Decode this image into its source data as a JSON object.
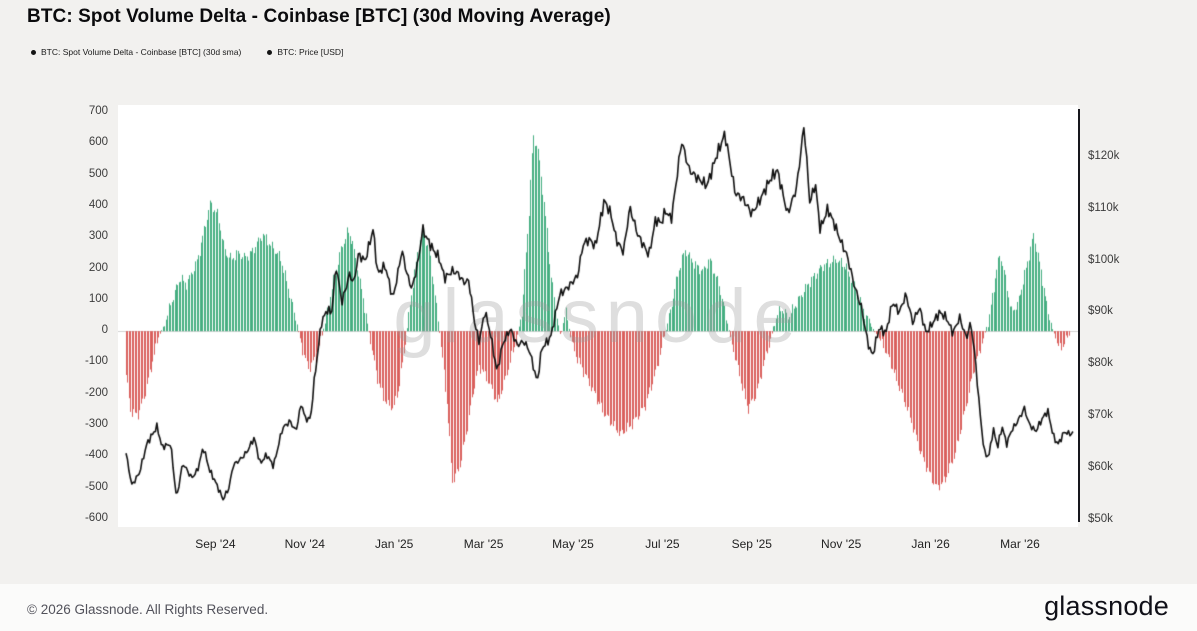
{
  "header": {
    "title": "BTC: Spot Volume Delta - Coinbase [BTC] (30d Moving Average)"
  },
  "legend": {
    "items": [
      {
        "label": "BTC: Spot Volume Delta - Coinbase [BTC] (30d sma)",
        "marker": "dot-icon",
        "color": "#141414"
      },
      {
        "label": "BTC: Price [USD]",
        "marker": "dot-icon",
        "color": "#141414"
      }
    ]
  },
  "watermark": "glassnode",
  "footer": {
    "copyright": "© 2026 Glassnode. All Rights Reserved.",
    "logo": "glassnode"
  },
  "colors": {
    "positive_bar": "#45ae81",
    "negative_bar": "#da5f5c",
    "price_line": "#111111",
    "zero_line": "#d2d2d2",
    "axis_spine": "#16161c",
    "plot_background": "#ffffff"
  },
  "chart_data": {
    "type": "combo",
    "title": "BTC: Spot Volume Delta - Coinbase [BTC] (30d Moving Average)",
    "x_unit": "months since 2024-07-01",
    "x_range": [
      0,
      21.2
    ],
    "grid": "zero-line-only",
    "legend_position": "top-left",
    "x_axis": {
      "ticks": [
        {
          "label": "Sep '24",
          "pos": 2
        },
        {
          "label": "Nov '24",
          "pos": 4
        },
        {
          "label": "Jan '25",
          "pos": 6
        },
        {
          "label": "Mar '25",
          "pos": 8
        },
        {
          "label": "May '25",
          "pos": 10
        },
        {
          "label": "Jul '25",
          "pos": 12
        },
        {
          "label": "Sep '25",
          "pos": 14
        },
        {
          "label": "Nov '25",
          "pos": 16
        },
        {
          "label": "Jan '26",
          "pos": 18
        },
        {
          "label": "Mar '26",
          "pos": 20
        }
      ]
    },
    "left_axis": {
      "title": "Spot Volume Delta (30d sma)",
      "ticks": [
        700,
        600,
        500,
        400,
        300,
        200,
        100,
        0,
        -100,
        -200,
        -300,
        -400,
        -500,
        -600
      ],
      "range": [
        -600,
        700
      ]
    },
    "right_axis": {
      "title": "BTC Price [USD]",
      "ticks": [
        {
          "label": "$120k",
          "value": 120
        },
        {
          "label": "$110k",
          "value": 110
        },
        {
          "label": "$100k",
          "value": 100
        },
        {
          "label": "$90k",
          "value": 90
        },
        {
          "label": "$80k",
          "value": 80
        },
        {
          "label": "$70k",
          "value": 70
        },
        {
          "label": "$60k",
          "value": 60
        },
        {
          "label": "$50k",
          "value": 50
        }
      ],
      "range_k": [
        50,
        120
      ]
    },
    "series": [
      {
        "name": "BTC: Spot Volume Delta - Coinbase [BTC] (30d sma)",
        "type": "bar",
        "axis": "left",
        "keypoints": [
          [
            0,
            -140
          ],
          [
            0.1,
            -255
          ],
          [
            0.25,
            -270
          ],
          [
            0.4,
            -210
          ],
          [
            0.55,
            -120
          ],
          [
            0.7,
            -30
          ],
          [
            0.85,
            25
          ],
          [
            1.0,
            90
          ],
          [
            1.2,
            170
          ],
          [
            1.35,
            150
          ],
          [
            1.6,
            230
          ],
          [
            1.88,
            410
          ],
          [
            2.05,
            370
          ],
          [
            2.2,
            255
          ],
          [
            2.35,
            230
          ],
          [
            2.5,
            250
          ],
          [
            2.65,
            235
          ],
          [
            2.8,
            250
          ],
          [
            3.05,
            310
          ],
          [
            3.2,
            280
          ],
          [
            3.45,
            235
          ],
          [
            3.6,
            150
          ],
          [
            3.75,
            60
          ],
          [
            3.88,
            -20
          ],
          [
            4.0,
            -90
          ],
          [
            4.1,
            -120
          ],
          [
            4.25,
            -80
          ],
          [
            4.38,
            -10
          ],
          [
            4.5,
            60
          ],
          [
            4.65,
            170
          ],
          [
            4.8,
            260
          ],
          [
            4.95,
            320
          ],
          [
            5.05,
            290
          ],
          [
            5.2,
            180
          ],
          [
            5.35,
            60
          ],
          [
            5.5,
            -60
          ],
          [
            5.62,
            -150
          ],
          [
            5.75,
            -210
          ],
          [
            5.9,
            -245
          ],
          [
            6.0,
            -235
          ],
          [
            6.1,
            -180
          ],
          [
            6.2,
            -90
          ],
          [
            6.3,
            30
          ],
          [
            6.42,
            160
          ],
          [
            6.55,
            280
          ],
          [
            6.65,
            320
          ],
          [
            6.8,
            240
          ],
          [
            6.92,
            100
          ],
          [
            7.05,
            -60
          ],
          [
            7.18,
            -240
          ],
          [
            7.3,
            -480
          ],
          [
            7.45,
            -440
          ],
          [
            7.6,
            -330
          ],
          [
            7.75,
            -200
          ],
          [
            7.9,
            -110
          ],
          [
            8.1,
            -160
          ],
          [
            8.3,
            -230
          ],
          [
            8.45,
            -170
          ],
          [
            8.6,
            -90
          ],
          [
            8.72,
            -30
          ],
          [
            8.85,
            60
          ],
          [
            9.0,
            350
          ],
          [
            9.1,
            620
          ],
          [
            9.2,
            590
          ],
          [
            9.35,
            400
          ],
          [
            9.5,
            180
          ],
          [
            9.62,
            60
          ],
          [
            9.72,
            -20
          ],
          [
            9.82,
            70
          ],
          [
            9.95,
            -30
          ],
          [
            10.1,
            -90
          ],
          [
            10.4,
            -180
          ],
          [
            10.7,
            -265
          ],
          [
            11.05,
            -330
          ],
          [
            11.3,
            -300
          ],
          [
            11.6,
            -240
          ],
          [
            11.85,
            -130
          ],
          [
            12.0,
            -40
          ],
          [
            12.15,
            50
          ],
          [
            12.35,
            190
          ],
          [
            12.5,
            260
          ],
          [
            12.7,
            215
          ],
          [
            12.9,
            190
          ],
          [
            13.05,
            230
          ],
          [
            13.25,
            150
          ],
          [
            13.4,
            60
          ],
          [
            13.55,
            -40
          ],
          [
            13.75,
            -160
          ],
          [
            13.9,
            -250
          ],
          [
            14.1,
            -200
          ],
          [
            14.25,
            -110
          ],
          [
            14.4,
            -30
          ],
          [
            14.5,
            30
          ],
          [
            14.65,
            75
          ],
          [
            14.8,
            45
          ],
          [
            15.0,
            90
          ],
          [
            15.25,
            150
          ],
          [
            15.55,
            205
          ],
          [
            15.88,
            230
          ],
          [
            16.1,
            205
          ],
          [
            16.3,
            140
          ],
          [
            16.5,
            60
          ],
          [
            16.7,
            10
          ],
          [
            16.95,
            -50
          ],
          [
            17.2,
            -140
          ],
          [
            17.5,
            -260
          ],
          [
            17.75,
            -380
          ],
          [
            17.95,
            -450
          ],
          [
            18.12,
            -500
          ],
          [
            18.3,
            -480
          ],
          [
            18.55,
            -390
          ],
          [
            18.75,
            -260
          ],
          [
            18.95,
            -130
          ],
          [
            19.12,
            -50
          ],
          [
            19.3,
            40
          ],
          [
            19.45,
            180
          ],
          [
            19.55,
            250
          ],
          [
            19.68,
            160
          ],
          [
            19.8,
            60
          ],
          [
            19.95,
            90
          ],
          [
            20.1,
            180
          ],
          [
            20.3,
            310
          ],
          [
            20.45,
            200
          ],
          [
            20.58,
            90
          ],
          [
            20.7,
            20
          ],
          [
            20.8,
            -30
          ],
          [
            20.9,
            -60
          ],
          [
            21.0,
            -30
          ],
          [
            21.1,
            -10
          ]
        ]
      },
      {
        "name": "BTC: Price [USD]",
        "type": "line",
        "axis": "right",
        "unit": "thousand USD",
        "keypoints": [
          [
            0,
            62.8
          ],
          [
            0.13,
            56.6
          ],
          [
            0.3,
            59
          ],
          [
            0.47,
            64.7
          ],
          [
            0.7,
            68
          ],
          [
            0.8,
            64
          ],
          [
            1.0,
            64.6
          ],
          [
            1.13,
            54
          ],
          [
            1.27,
            60.9
          ],
          [
            1.47,
            58
          ],
          [
            1.6,
            59.5
          ],
          [
            1.73,
            64
          ],
          [
            1.87,
            59.5
          ],
          [
            2.0,
            57.3
          ],
          [
            2.17,
            53.9
          ],
          [
            2.3,
            56
          ],
          [
            2.4,
            60.5
          ],
          [
            2.57,
            61.7
          ],
          [
            2.7,
            63
          ],
          [
            2.87,
            65.8
          ],
          [
            3.0,
            60.8
          ],
          [
            3.15,
            62.5
          ],
          [
            3.3,
            60.3
          ],
          [
            3.5,
            67.6
          ],
          [
            3.67,
            69
          ],
          [
            3.8,
            67
          ],
          [
            3.93,
            72.7
          ],
          [
            4.0,
            69.5
          ],
          [
            4.13,
            69.4
          ],
          [
            4.2,
            75.9
          ],
          [
            4.37,
            88
          ],
          [
            4.5,
            90.5
          ],
          [
            4.6,
            89.9
          ],
          [
            4.7,
            99
          ],
          [
            4.83,
            91.9
          ],
          [
            5.0,
            97.3
          ],
          [
            5.1,
            95.8
          ],
          [
            5.2,
            101.2
          ],
          [
            5.35,
            99.9
          ],
          [
            5.53,
            106.1
          ],
          [
            5.63,
            97.5
          ],
          [
            5.8,
            99
          ],
          [
            5.97,
            92.6
          ],
          [
            6.1,
            98.3
          ],
          [
            6.17,
            102.1
          ],
          [
            6.3,
            96.9
          ],
          [
            6.4,
            94.5
          ],
          [
            6.55,
            100.5
          ],
          [
            6.63,
            106.1
          ],
          [
            6.75,
            104
          ],
          [
            6.87,
            102.1
          ],
          [
            7.0,
            100.6
          ],
          [
            7.13,
            96.6
          ],
          [
            7.3,
            98
          ],
          [
            7.43,
            97.5
          ],
          [
            7.55,
            95.8
          ],
          [
            7.67,
            96.1
          ],
          [
            7.8,
            88
          ],
          [
            7.9,
            84.3
          ],
          [
            8.03,
            90.2
          ],
          [
            8.15,
            86
          ],
          [
            8.3,
            78.5
          ],
          [
            8.43,
            84
          ],
          [
            8.6,
            86.8
          ],
          [
            8.75,
            83.7
          ],
          [
            8.9,
            84.4
          ],
          [
            9.03,
            82.5
          ],
          [
            9.2,
            76.5
          ],
          [
            9.3,
            83
          ],
          [
            9.5,
            85.2
          ],
          [
            9.7,
            93.4
          ],
          [
            9.9,
            95
          ],
          [
            10.1,
            97
          ],
          [
            10.23,
            103.2
          ],
          [
            10.37,
            104.1
          ],
          [
            10.5,
            102.7
          ],
          [
            10.7,
            111.7
          ],
          [
            10.85,
            108.9
          ],
          [
            10.97,
            104
          ],
          [
            11.13,
            101.6
          ],
          [
            11.27,
            110.3
          ],
          [
            11.45,
            105
          ],
          [
            11.7,
            101
          ],
          [
            11.85,
            108
          ],
          [
            11.97,
            107.2
          ],
          [
            12.07,
            109.6
          ],
          [
            12.2,
            108
          ],
          [
            12.43,
            123.1
          ],
          [
            12.6,
            117.5
          ],
          [
            12.8,
            115.8
          ],
          [
            13.0,
            114.5
          ],
          [
            13.2,
            120
          ],
          [
            13.4,
            124.5
          ],
          [
            13.63,
            113
          ],
          [
            13.8,
            112
          ],
          [
            14.0,
            109
          ],
          [
            14.2,
            112
          ],
          [
            14.4,
            115.5
          ],
          [
            14.57,
            117.5
          ],
          [
            14.8,
            109
          ],
          [
            15.0,
            114
          ],
          [
            15.17,
            126.2
          ],
          [
            15.3,
            111
          ],
          [
            15.42,
            115
          ],
          [
            15.53,
            106
          ],
          [
            15.7,
            110
          ],
          [
            15.85,
            107
          ],
          [
            16.0,
            103.5
          ],
          [
            16.13,
            101
          ],
          [
            16.3,
            95
          ],
          [
            16.45,
            91
          ],
          [
            16.6,
            84
          ],
          [
            16.7,
            81.6
          ],
          [
            16.85,
            87
          ],
          [
            17.0,
            86
          ],
          [
            17.15,
            92
          ],
          [
            17.3,
            90
          ],
          [
            17.45,
            93.5
          ],
          [
            17.6,
            88
          ],
          [
            17.75,
            91
          ],
          [
            17.9,
            86
          ],
          [
            18.05,
            88
          ],
          [
            18.2,
            90
          ],
          [
            18.35,
            89
          ],
          [
            18.5,
            86
          ],
          [
            18.65,
            89
          ],
          [
            18.8,
            85
          ],
          [
            18.9,
            88
          ],
          [
            19.0,
            81
          ],
          [
            19.1,
            71
          ],
          [
            19.2,
            63
          ],
          [
            19.3,
            62
          ],
          [
            19.4,
            67.5
          ],
          [
            19.5,
            64
          ],
          [
            19.6,
            68
          ],
          [
            19.7,
            64.5
          ],
          [
            19.8,
            67
          ],
          [
            19.95,
            69
          ],
          [
            20.1,
            71.5
          ],
          [
            20.2,
            68.5
          ],
          [
            20.35,
            67
          ],
          [
            20.5,
            69.5
          ],
          [
            20.62,
            71
          ],
          [
            20.75,
            66
          ],
          [
            20.85,
            64.5
          ],
          [
            21.0,
            67
          ],
          [
            21.1,
            66.5
          ],
          [
            21.2,
            66.8
          ]
        ]
      }
    ]
  }
}
